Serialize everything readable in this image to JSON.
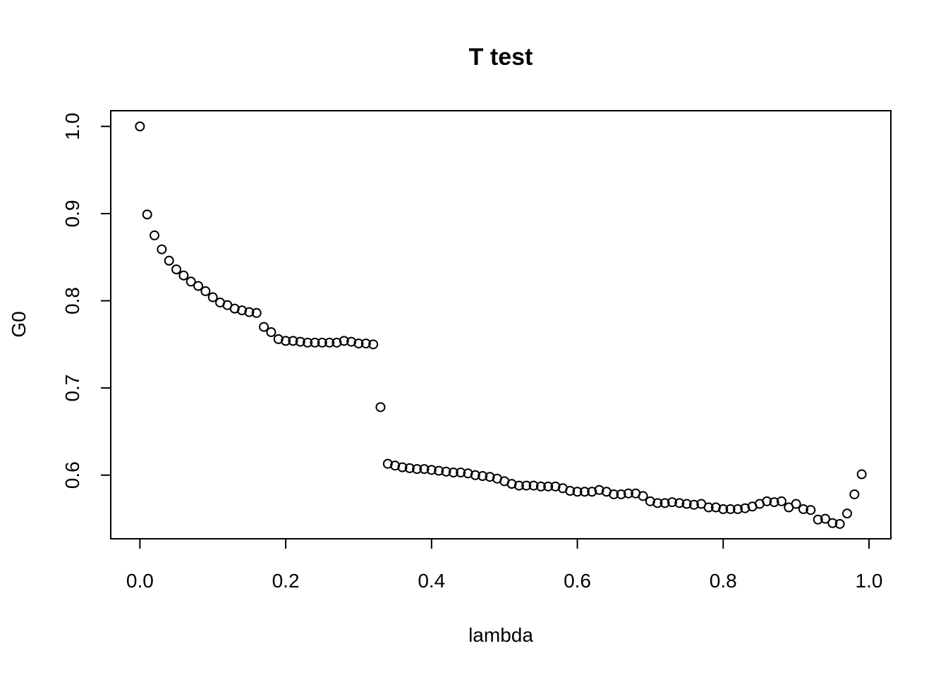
{
  "chart_data": {
    "type": "scatter",
    "title": "T test",
    "xlabel": "lambda",
    "ylabel": "G0",
    "xlim": [
      -0.04,
      1.03
    ],
    "ylim": [
      0.527,
      1.018
    ],
    "x_ticks": [
      0.0,
      0.2,
      0.4,
      0.6,
      0.8,
      1.0
    ],
    "x_tick_labels": [
      "0.0",
      "0.2",
      "0.4",
      "0.6",
      "0.8",
      "1.0"
    ],
    "y_ticks": [
      0.6,
      0.7,
      0.8,
      0.9,
      1.0
    ],
    "y_tick_labels": [
      "0.6",
      "0.7",
      "0.8",
      "0.9",
      "1.0"
    ],
    "grid": false,
    "marker": "open-circle",
    "series": [
      {
        "x": [
          0.0,
          0.01,
          0.02,
          0.03,
          0.04,
          0.05,
          0.06,
          0.07,
          0.08,
          0.09,
          0.1,
          0.11,
          0.12,
          0.13,
          0.14,
          0.15,
          0.16,
          0.17,
          0.18,
          0.19,
          0.2,
          0.21,
          0.22,
          0.23,
          0.24,
          0.25,
          0.26,
          0.27,
          0.28,
          0.29,
          0.3,
          0.31,
          0.32,
          0.33,
          0.34,
          0.35,
          0.36,
          0.37,
          0.38,
          0.39,
          0.4,
          0.41,
          0.42,
          0.43,
          0.44,
          0.45,
          0.46,
          0.47,
          0.48,
          0.49,
          0.5,
          0.51,
          0.52,
          0.53,
          0.54,
          0.55,
          0.56,
          0.57,
          0.58,
          0.59,
          0.6,
          0.61,
          0.62,
          0.63,
          0.64,
          0.65,
          0.66,
          0.67,
          0.68,
          0.69,
          0.7,
          0.71,
          0.72,
          0.73,
          0.74,
          0.75,
          0.76,
          0.77,
          0.78,
          0.79,
          0.8,
          0.81,
          0.82,
          0.83,
          0.84,
          0.85,
          0.86,
          0.87,
          0.88,
          0.89,
          0.9,
          0.91,
          0.92,
          0.93,
          0.94,
          0.95,
          0.96,
          0.97,
          0.98,
          0.99
        ],
        "y": [
          1.0,
          0.899,
          0.875,
          0.859,
          0.846,
          0.836,
          0.829,
          0.822,
          0.817,
          0.811,
          0.804,
          0.798,
          0.795,
          0.791,
          0.789,
          0.787,
          0.786,
          0.77,
          0.764,
          0.756,
          0.754,
          0.754,
          0.753,
          0.752,
          0.752,
          0.752,
          0.752,
          0.752,
          0.754,
          0.753,
          0.751,
          0.751,
          0.75,
          0.678,
          0.613,
          0.611,
          0.609,
          0.608,
          0.607,
          0.607,
          0.606,
          0.605,
          0.604,
          0.603,
          0.603,
          0.602,
          0.6,
          0.599,
          0.598,
          0.596,
          0.593,
          0.59,
          0.588,
          0.588,
          0.588,
          0.587,
          0.587,
          0.587,
          0.585,
          0.582,
          0.581,
          0.581,
          0.581,
          0.583,
          0.581,
          0.578,
          0.578,
          0.579,
          0.579,
          0.576,
          0.57,
          0.568,
          0.568,
          0.569,
          0.568,
          0.567,
          0.566,
          0.567,
          0.563,
          0.563,
          0.561,
          0.561,
          0.561,
          0.562,
          0.564,
          0.567,
          0.57,
          0.569,
          0.57,
          0.563,
          0.567,
          0.561,
          0.56,
          0.549,
          0.55,
          0.545,
          0.544,
          0.556,
          0.578,
          0.601
        ]
      }
    ]
  }
}
